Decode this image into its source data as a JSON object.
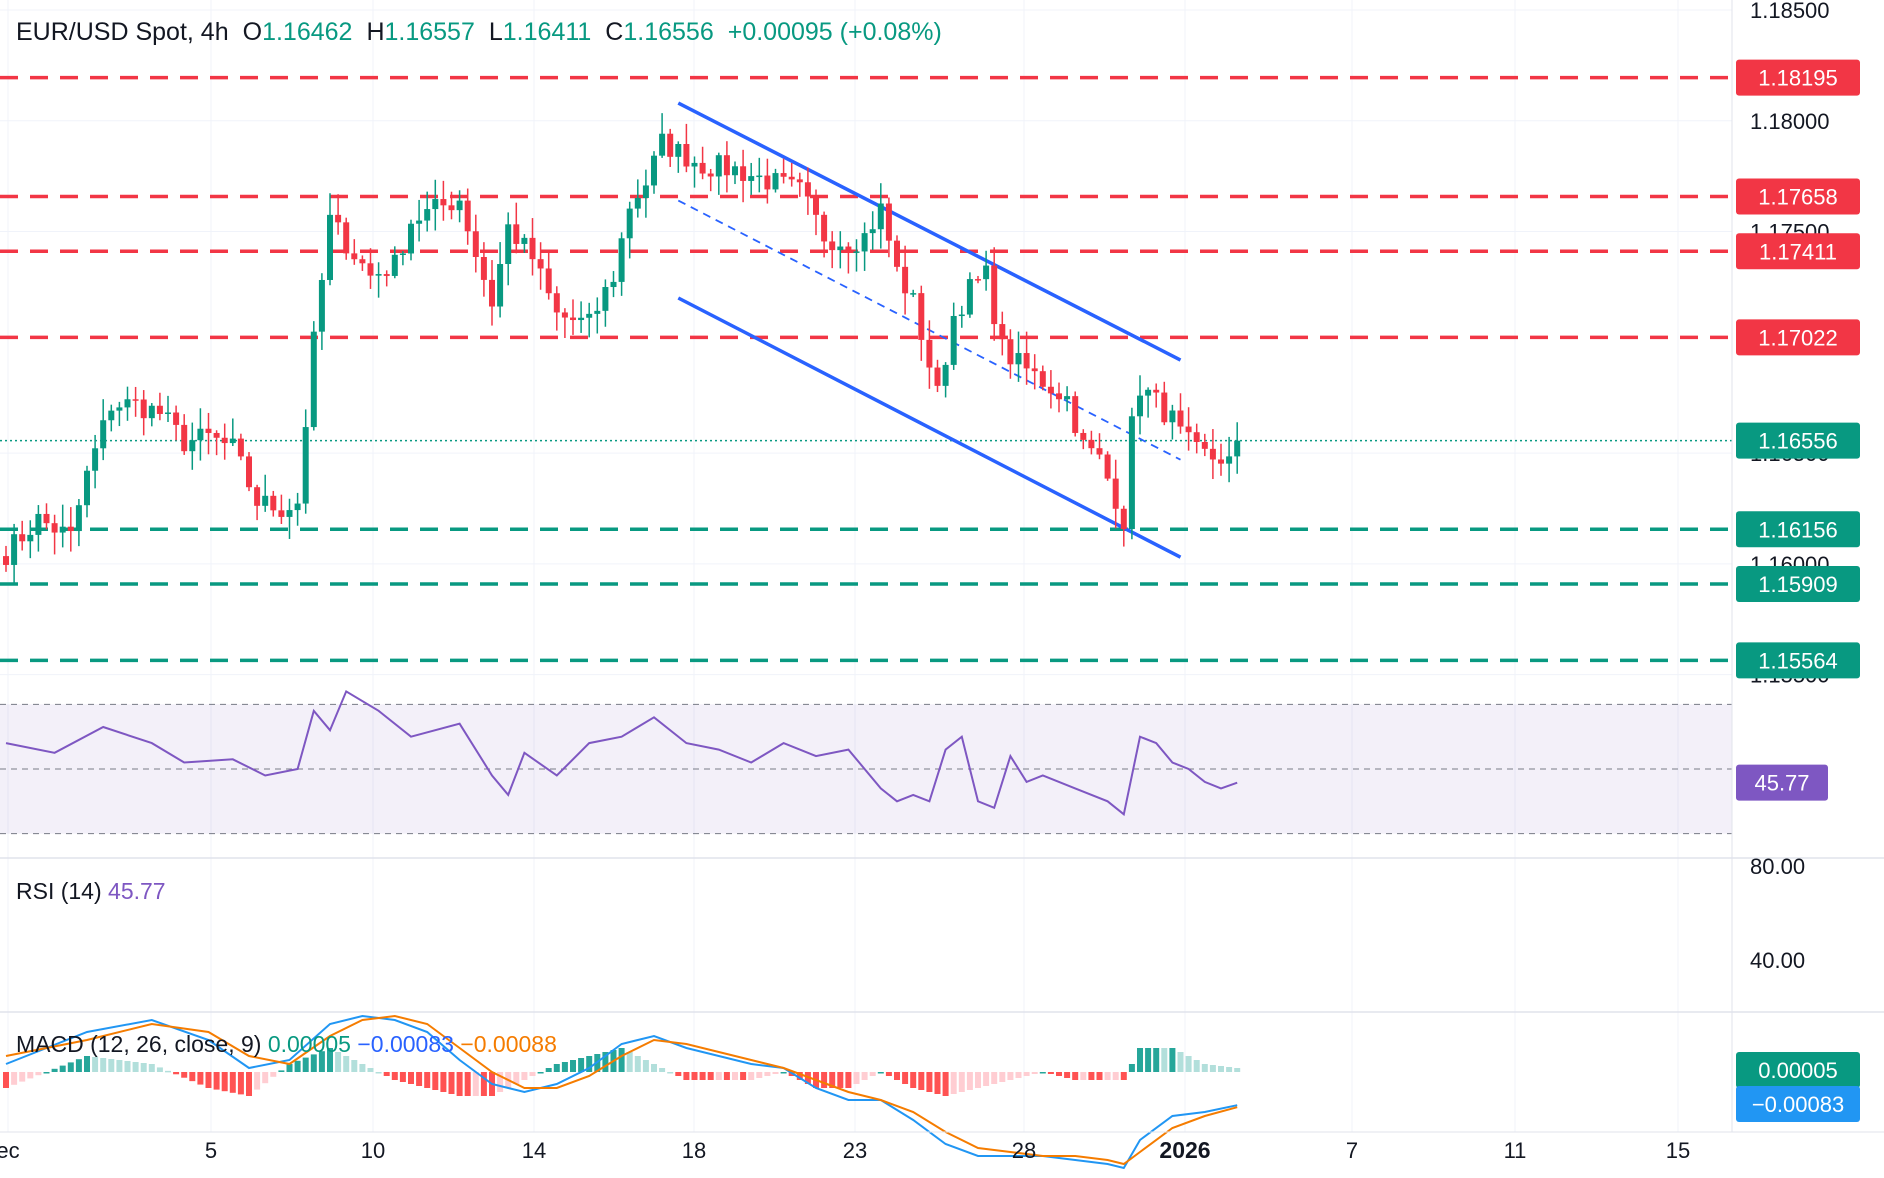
{
  "header": {
    "symbol": "EUR/USD Spot",
    "timeframe": "4h",
    "open_label": "O",
    "open": "1.16462",
    "high_label": "H",
    "high": "1.16557",
    "low_label": "L",
    "low": "1.16411",
    "close_label": "C",
    "close": "1.16556",
    "change": "+0.00095 (+0.08%)"
  },
  "colors": {
    "up": "#089981",
    "down": "#f23645",
    "resistance": "#f23645",
    "support": "#089981",
    "channel": "#2962ff",
    "rsi": "#7e57c2",
    "macd": "#2196f3",
    "signal": "#f57c00"
  },
  "chart_data": [
    {
      "type": "candlestick",
      "ylim": [
        1.1525,
        1.185
      ],
      "price_ticks": [
        "1.18500",
        "1.18000",
        "1.17500",
        "1.16500",
        "1.16000",
        "1.15500"
      ],
      "x_ticks": [
        "ec",
        "5",
        "10",
        "14",
        "18",
        "23",
        "28",
        "2026",
        "7",
        "11",
        "15"
      ],
      "candle_count": 155,
      "last_price": "1.16556",
      "levels": [
        {
          "label": "1.18195",
          "value": 1.18195,
          "kind": "resistance"
        },
        {
          "label": "1.17658",
          "value": 1.17658,
          "kind": "resistance"
        },
        {
          "label": "1.17411",
          "value": 1.17411,
          "kind": "resistance"
        },
        {
          "label": "1.17022",
          "value": 1.17022,
          "kind": "resistance"
        },
        {
          "label": "1.16156",
          "value": 1.16156,
          "kind": "support"
        },
        {
          "label": "1.15909",
          "value": 1.15909,
          "kind": "support"
        },
        {
          "label": "1.15564",
          "value": 1.15564,
          "kind": "support"
        }
      ],
      "channel": {
        "upper": {
          "start_bar": 83,
          "start": 1.1808,
          "end_bar": 145,
          "end": 1.1692
        },
        "lower": {
          "start_bar": 83,
          "start": 1.172,
          "end_bar": 145,
          "end": 1.1603
        },
        "mid": {
          "start_bar": 83,
          "start": 1.1764,
          "end_bar": 145,
          "end": 1.1647
        }
      },
      "anchors": [
        [
          0,
          1.1605
        ],
        [
          4,
          1.162
        ],
        [
          8,
          1.1612
        ],
        [
          10,
          1.164
        ],
        [
          13,
          1.1672
        ],
        [
          16,
          1.1672
        ],
        [
          19,
          1.1668
        ],
        [
          22,
          1.1655
        ],
        [
          25,
          1.1657
        ],
        [
          28,
          1.1652
        ],
        [
          31,
          1.1628
        ],
        [
          34,
          1.1625
        ],
        [
          36,
          1.1628
        ],
        [
          38,
          1.17
        ],
        [
          40,
          1.1755
        ],
        [
          42,
          1.1745
        ],
        [
          45,
          1.173
        ],
        [
          48,
          1.1735
        ],
        [
          50,
          1.1755
        ],
        [
          53,
          1.176
        ],
        [
          56,
          1.1765
        ],
        [
          58,
          1.174
        ],
        [
          60,
          1.1718
        ],
        [
          62,
          1.1752
        ],
        [
          65,
          1.1738
        ],
        [
          68,
          1.1712
        ],
        [
          70,
          1.171
        ],
        [
          72,
          1.1708
        ],
        [
          75,
          1.173
        ],
        [
          77,
          1.1762
        ],
        [
          79,
          1.1772
        ],
        [
          81,
          1.179
        ],
        [
          83,
          1.1786
        ],
        [
          86,
          1.178
        ],
        [
          90,
          1.1778
        ],
        [
          94,
          1.1773
        ],
        [
          98,
          1.1768
        ],
        [
          101,
          1.1748
        ],
        [
          104,
          1.1745
        ],
        [
          106,
          1.1748
        ],
        [
          108,
          1.176
        ],
        [
          110,
          1.1732
        ],
        [
          112,
          1.1718
        ],
        [
          114,
          1.169
        ],
        [
          115,
          1.1676
        ],
        [
          117,
          1.1712
        ],
        [
          119,
          1.1724
        ],
        [
          121,
          1.173
        ],
        [
          123,
          1.1697
        ],
        [
          125,
          1.169
        ],
        [
          127,
          1.1685
        ],
        [
          129,
          1.168
        ],
        [
          131,
          1.1675
        ],
        [
          133,
          1.1653
        ],
        [
          135,
          1.1647
        ],
        [
          137,
          1.163
        ],
        [
          138,
          1.162
        ],
        [
          139,
          1.1662
        ],
        [
          140,
          1.168
        ],
        [
          142,
          1.1673
        ],
        [
          144,
          1.1665
        ],
        [
          145,
          1.1658
        ],
        [
          147,
          1.165
        ],
        [
          149,
          1.1648
        ],
        [
          150,
          1.1648
        ],
        [
          151,
          1.1646
        ],
        [
          152,
          1.16462
        ]
      ]
    },
    {
      "type": "line",
      "name": "RSI (14)",
      "value": "45.77",
      "ylim": [
        20,
        80
      ],
      "tick": "80.00",
      "overlapping_tick": "40.00",
      "band": [
        30,
        70
      ],
      "middle": 50,
      "x": [
        0,
        6,
        12,
        18,
        22,
        28,
        32,
        36,
        38,
        40,
        42,
        46,
        50,
        56,
        60,
        62,
        64,
        68,
        72,
        76,
        80,
        84,
        88,
        92,
        96,
        100,
        104,
        108,
        110,
        112,
        114,
        116,
        118,
        120,
        122,
        124,
        126,
        128,
        132,
        136,
        138,
        140,
        142,
        144,
        146,
        148,
        150,
        152
      ],
      "values": [
        58,
        55,
        63,
        58,
        52,
        53,
        48,
        50,
        68,
        62,
        74,
        68,
        60,
        64,
        48,
        42,
        55,
        48,
        58,
        60,
        66,
        58,
        56,
        52,
        58,
        54,
        56,
        44,
        40,
        42,
        40,
        56,
        60,
        40,
        38,
        54,
        46,
        48,
        44,
        40,
        36,
        60,
        58,
        52,
        50,
        46,
        44,
        45.77
      ]
    },
    {
      "type": "line",
      "name": "MACD (12, 26, close, 9)",
      "macd_value": "−0.00083",
      "signal_value": "−0.00088",
      "histogram_value": "0.00005",
      "axis_labels": [
        "0.00005",
        "−0.00083"
      ],
      "x": [
        0,
        10,
        18,
        25,
        30,
        35,
        40,
        44,
        48,
        52,
        56,
        60,
        64,
        68,
        72,
        76,
        80,
        84,
        88,
        92,
        96,
        100,
        104,
        108,
        112,
        116,
        120,
        124,
        128,
        132,
        136,
        138,
        140,
        144,
        148,
        152
      ],
      "macd": [
        0.0002,
        0.001,
        0.0013,
        0.0008,
        0.0001,
        0.0003,
        0.0012,
        0.0014,
        0.0013,
        0.001,
        0.0003,
        -0.0003,
        -0.0005,
        -0.0003,
        0.0001,
        0.0007,
        0.0009,
        0.0006,
        0.0004,
        0.0002,
        0.0001,
        -0.0004,
        -0.0007,
        -0.0007,
        -0.0012,
        -0.0018,
        -0.0021,
        -0.0021,
        -0.0021,
        -0.0022,
        -0.0023,
        -0.0024,
        -0.0017,
        -0.0011,
        -0.001,
        -0.00083
      ],
      "signal": [
        0.0004,
        0.0008,
        0.0012,
        0.001,
        0.0004,
        0.0002,
        0.0009,
        0.0013,
        0.0014,
        0.0012,
        0.0006,
        0.0,
        -0.0004,
        -0.0004,
        -0.0001,
        0.0004,
        0.0008,
        0.0007,
        0.0005,
        0.0003,
        0.0001,
        -0.0002,
        -0.0005,
        -0.0007,
        -0.001,
        -0.0015,
        -0.0019,
        -0.002,
        -0.0021,
        -0.0021,
        -0.0022,
        -0.0023,
        -0.002,
        -0.0014,
        -0.0011,
        -0.00088
      ]
    }
  ]
}
